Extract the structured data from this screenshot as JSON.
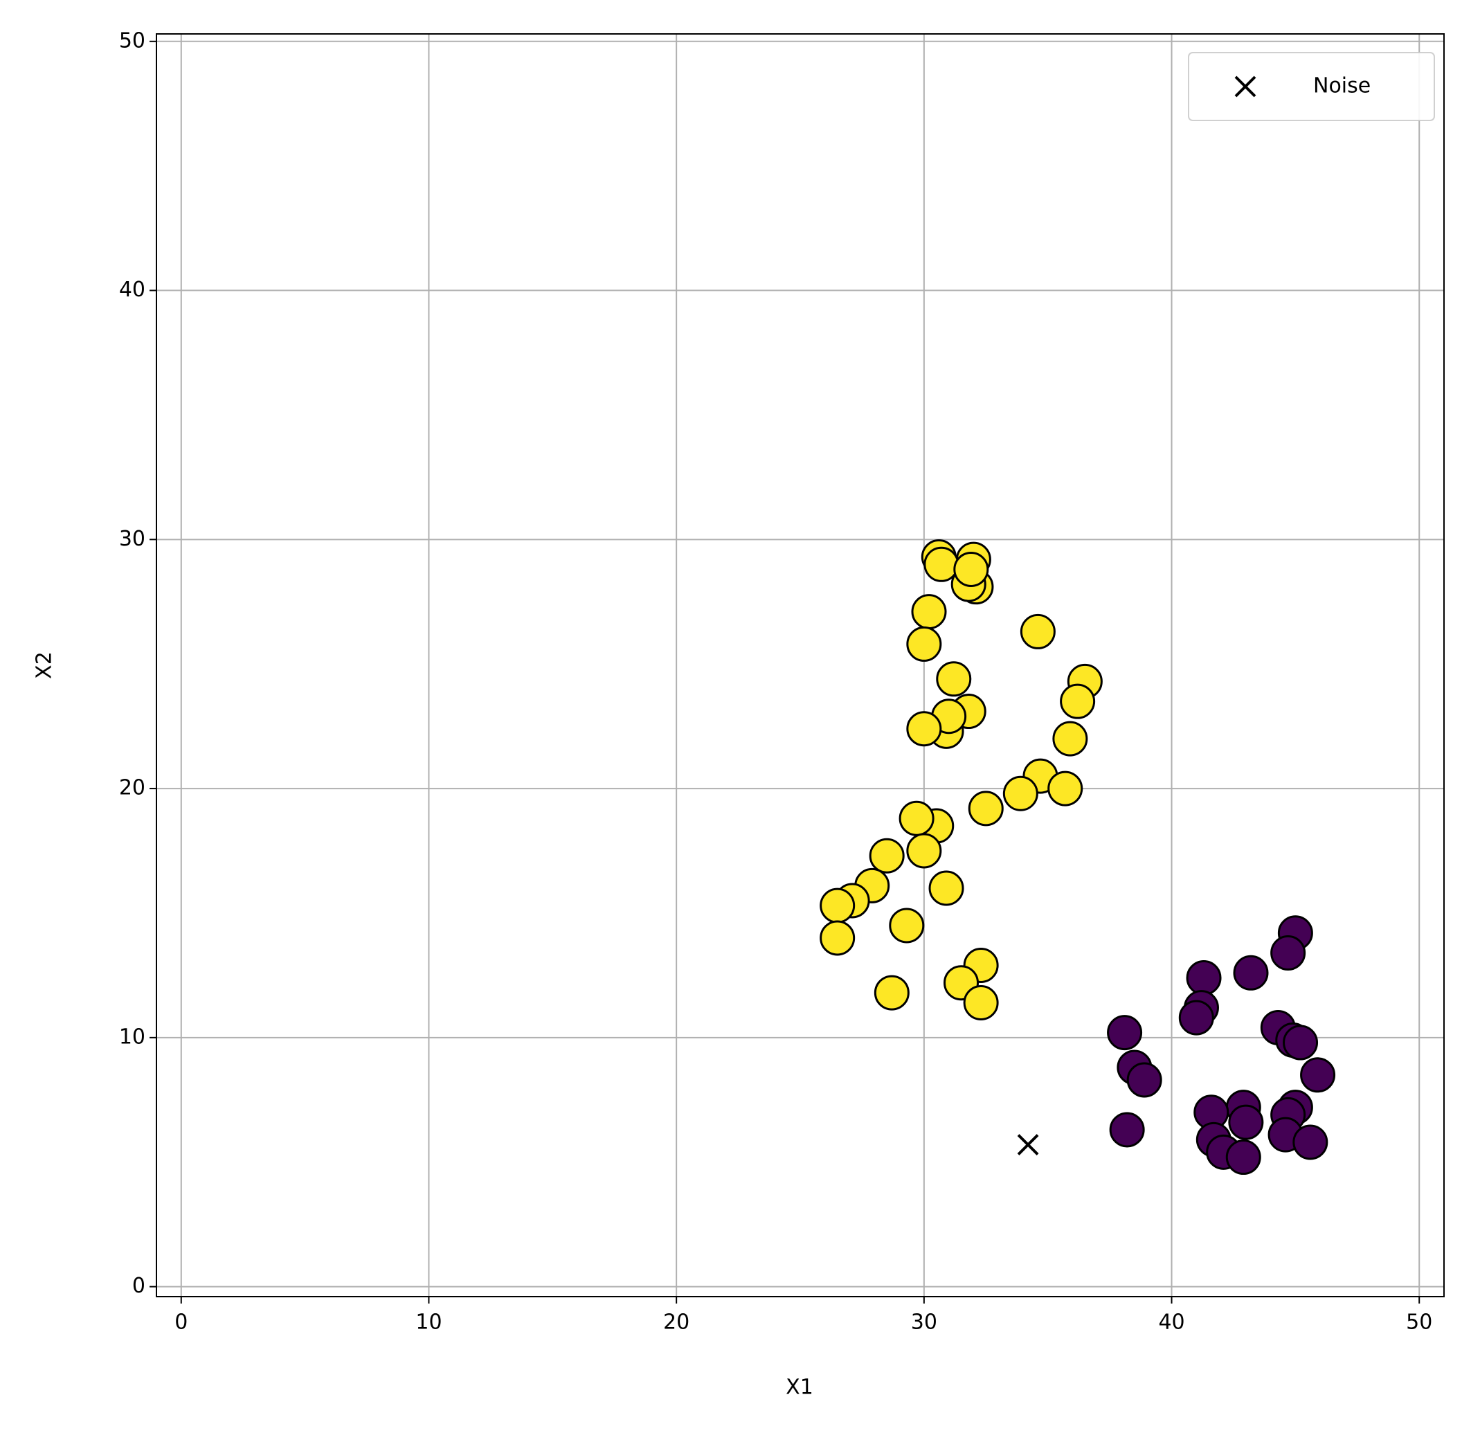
{
  "chart_data": {
    "type": "scatter",
    "x_label": "X1",
    "y_label": "X2",
    "xlim": [
      -1,
      51
    ],
    "ylim": [
      -0.4,
      50.3
    ],
    "xticks": [
      0,
      10,
      20,
      30,
      40,
      50
    ],
    "yticks": [
      0,
      10,
      20,
      30,
      40,
      50
    ],
    "grid": true,
    "legend": "upper right",
    "series": [
      {
        "color": "#fde725",
        "marker": "o",
        "x": [
          30.6,
          32.0,
          30.7,
          32.1,
          31.8,
          31.9,
          30.2,
          30.0,
          34.6,
          31.2,
          36.5,
          36.2,
          31.8,
          30.9,
          31.0,
          30.0,
          35.9,
          34.7,
          35.7,
          33.9,
          32.5,
          30.5,
          29.7,
          30.0,
          28.5,
          27.9,
          30.9,
          27.1,
          26.5,
          26.5,
          29.3,
          32.3,
          31.5,
          32.3,
          28.7
        ],
        "y": [
          29.3,
          29.2,
          29.0,
          28.1,
          28.2,
          28.8,
          27.1,
          25.8,
          26.3,
          24.4,
          24.3,
          23.5,
          23.1,
          22.3,
          22.9,
          22.4,
          22.0,
          20.5,
          20.0,
          19.8,
          19.2,
          18.5,
          18.8,
          17.5,
          17.3,
          16.1,
          16.0,
          15.5,
          15.3,
          14.0,
          14.5,
          12.9,
          12.2,
          11.4,
          11.8
        ]
      },
      {
        "color": "#440154",
        "marker": "o",
        "x": [
          45.0,
          44.7,
          43.2,
          41.3,
          41.2,
          41.0,
          38.1,
          44.3,
          44.9,
          45.2,
          38.5,
          38.9,
          45.9,
          42.9,
          45.0,
          41.6,
          44.7,
          43.0,
          44.6,
          41.7,
          45.6,
          38.2,
          42.1,
          42.9
        ],
        "y": [
          14.2,
          13.4,
          12.6,
          12.4,
          11.2,
          10.8,
          10.2,
          10.4,
          9.9,
          9.8,
          8.8,
          8.3,
          8.5,
          7.2,
          7.2,
          7.0,
          6.9,
          6.6,
          6.1,
          5.9,
          5.8,
          6.3,
          5.4,
          5.2
        ]
      },
      {
        "name": "Noise",
        "color": "#000000",
        "marker": "x",
        "x": [
          34.2
        ],
        "y": [
          5.7
        ]
      }
    ]
  }
}
